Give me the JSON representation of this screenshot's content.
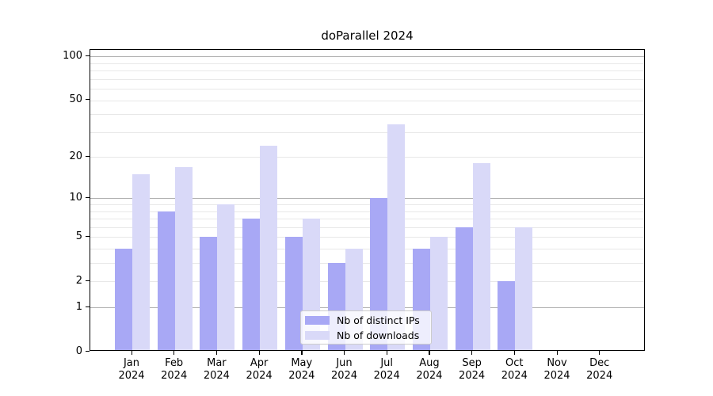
{
  "chart_data": {
    "type": "bar",
    "title": "doParallel 2024",
    "categories": [
      "Jan",
      "Feb",
      "Mar",
      "Apr",
      "May",
      "Jun",
      "Jul",
      "Aug",
      "Sep",
      "Oct",
      "Nov",
      "Dec"
    ],
    "x_year_label": "2024",
    "series": [
      {
        "name": "Nb of distinct IPs",
        "color": "#a8a8f5",
        "values": [
          4,
          8,
          5,
          7,
          5,
          3,
          10,
          4,
          6,
          2,
          0,
          0
        ]
      },
      {
        "name": "Nb of downloads",
        "color": "#d9d9f8",
        "values": [
          15,
          17,
          9,
          24,
          7,
          4,
          34,
          5,
          18,
          6,
          0,
          0
        ]
      }
    ],
    "y_scale": "log1p",
    "ylim": [
      0,
      111
    ],
    "y_ticks_labeled": [
      0,
      1,
      2,
      5,
      10,
      20,
      50,
      100
    ],
    "y_gridlines_major": [
      1,
      10,
      100
    ],
    "y_gridlines_minor": [
      2,
      3,
      4,
      5,
      6,
      7,
      8,
      9,
      20,
      30,
      40,
      50,
      60,
      70,
      80,
      90
    ],
    "grid": true,
    "legend_position": "lower center",
    "colors": {
      "major_grid": "#b0b0b0",
      "minor_grid": "#e8e8e8",
      "axis": "#000000",
      "text": "#000000",
      "background": "#ffffff"
    }
  }
}
